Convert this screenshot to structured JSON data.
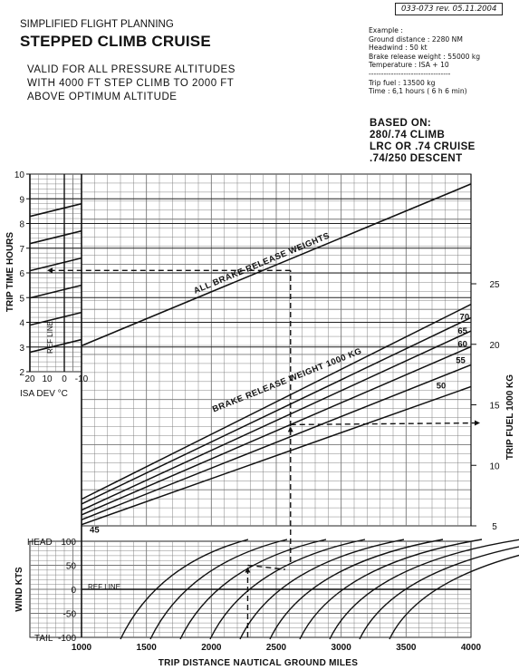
{
  "header": {
    "stamp": "033-073 rev. 05.11.2004",
    "supertitle": "SIMPLIFIED FLIGHT PLANNING",
    "title": "STEPPED CLIMB CRUISE",
    "validity": [
      "VALID FOR ALL PRESSURE ALTITUDES",
      "WITH 4000 FT STEP CLIMB TO 2000 FT",
      "ABOVE OPTIMUM ALTITUDE"
    ]
  },
  "example": {
    "heading": "Example :",
    "lines": [
      "Ground distance : 2280 NM",
      "Headwind : 50 kt",
      "Brake release weight : 55000 kg",
      "Temperature : ISA + 10"
    ],
    "separator": "---------------------------------",
    "results": [
      "Trip fuel : 13500 kg",
      "Time : 6,1 hours ( 6 h 6 min)"
    ]
  },
  "based_on": {
    "heading": "BASED ON:",
    "lines": [
      "280/.74 CLIMB",
      "LRC OR .74 CRUISE",
      ".74/250 DESCENT"
    ]
  },
  "chart_data": {
    "type": "line",
    "title": "STEPPED CLIMB CRUISE",
    "xlabel": "TRIP DISTANCE  NAUTICAL GROUND MILES",
    "xlim": [
      1000,
      4000
    ],
    "x_ticks": [
      "1000",
      "1500",
      "2000",
      "2500",
      "3000",
      "3500",
      "4000"
    ],
    "time_panel": {
      "ylabel": "TRIP TIME   HOURS",
      "ylim": [
        2,
        10
      ],
      "y_ticks": [
        "2",
        "3",
        "4",
        "5",
        "6",
        "7",
        "8",
        "9",
        "10"
      ],
      "curve_label": "ALL BRAKE RELEASE WEIGHTS",
      "series": [
        {
          "name": "ALL BRAKE RELEASE WEIGHTS",
          "x": [
            1000,
            4000
          ],
          "y": [
            3.05,
            9.6
          ]
        }
      ],
      "isa_dev": {
        "label": "ISA DEV  °C",
        "ref_line_label": "REF LINE",
        "ticks": [
          "20",
          "10",
          "0",
          "-10"
        ],
        "xlim": [
          20,
          -10
        ]
      }
    },
    "fuel_panel": {
      "ylabel": "TRIP FUEL   1000 KG",
      "ylim": [
        5,
        25
      ],
      "y_ticks": [
        "5",
        "10",
        "15",
        "20",
        "25"
      ],
      "weight_label": "BRAKE RELEASE WEIGHT   1000 KG",
      "series": [
        {
          "name": "45",
          "x": [
            1000,
            4000
          ],
          "y": [
            5.1,
            16.5
          ]
        },
        {
          "name": "50",
          "x": [
            1000,
            4000
          ],
          "y": [
            5.5,
            18.3
          ]
        },
        {
          "name": "55",
          "x": [
            1000,
            4000
          ],
          "y": [
            5.9,
            19.8
          ]
        },
        {
          "name": "60",
          "x": [
            1000,
            4000
          ],
          "y": [
            6.3,
            21.1
          ]
        },
        {
          "name": "65",
          "x": [
            1000,
            4000
          ],
          "y": [
            6.8,
            22.2
          ]
        },
        {
          "name": "70",
          "x": [
            1000,
            4000
          ],
          "y": [
            7.2,
            23.3
          ]
        }
      ]
    },
    "wind_panel": {
      "ylabel": "WIND  KTS",
      "ylim": [
        -100,
        100
      ],
      "y_ticks": [
        "100",
        "50",
        "0",
        "-50",
        "-100"
      ],
      "head_label": "HEAD",
      "tail_label": "TAIL",
      "ref_line_label": "REF LINE",
      "guide_curves_count": 10
    },
    "example_solution": {
      "ground_distance_nm": 2280,
      "headwind_kt": 50,
      "air_distance_nm": 2610,
      "brake_release_weight_t": 55,
      "isa_deviation_c": 10,
      "trip_fuel_t": 13.5,
      "trip_time_h": 6.1
    }
  }
}
